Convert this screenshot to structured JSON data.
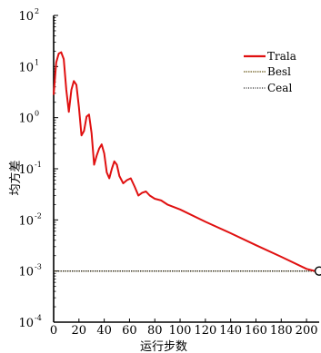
{
  "chart_data": {
    "type": "line",
    "xlabel": "运行步数",
    "ylabel": "均方差",
    "x_ticks": [
      "0",
      "20",
      "40",
      "60",
      "80",
      "100",
      "120",
      "140",
      "160",
      "180",
      "200"
    ],
    "y_ticks": [
      {
        "base": "10",
        "exp": "2"
      },
      {
        "base": "10",
        "exp": "1"
      },
      {
        "base": "10",
        "exp": "0"
      },
      {
        "base": "10",
        "exp": "-1"
      },
      {
        "base": "10",
        "exp": "-2"
      },
      {
        "base": "10",
        "exp": "-3"
      },
      {
        "base": "10",
        "exp": "-4"
      }
    ],
    "xlim": [
      0,
      210
    ],
    "ylim": [
      0.0001,
      100
    ],
    "yscale": "log",
    "grid": false,
    "legend_position": "top-right",
    "series": [
      {
        "name": "Trala",
        "color": "#e01010",
        "style": "solid",
        "x": [
          0,
          2,
          4,
          6,
          8,
          10,
          12,
          14,
          16,
          18,
          20,
          22,
          24,
          26,
          28,
          30,
          32,
          34,
          36,
          38,
          40,
          42,
          44,
          46,
          48,
          50,
          52,
          55,
          58,
          61,
          64,
          67,
          70,
          73,
          76,
          80,
          85,
          90,
          100,
          120,
          140,
          160,
          180,
          200,
          210
        ],
        "y": [
          2.8,
          12,
          18,
          19,
          14,
          3.5,
          1.3,
          3.5,
          5.2,
          4.4,
          1.6,
          0.45,
          0.55,
          1.05,
          1.15,
          0.5,
          0.12,
          0.18,
          0.25,
          0.3,
          0.2,
          0.085,
          0.065,
          0.1,
          0.14,
          0.12,
          0.072,
          0.052,
          0.06,
          0.065,
          0.045,
          0.03,
          0.034,
          0.036,
          0.03,
          0.026,
          0.024,
          0.02,
          0.016,
          0.0092,
          0.0055,
          0.0032,
          0.0019,
          0.0011,
          0.00095
        ]
      },
      {
        "name": "Besl",
        "color": "#6b5a1a",
        "style": "dotted",
        "x": [
          0,
          210
        ],
        "y": [
          0.001,
          0.001
        ]
      },
      {
        "name": "Ceal",
        "color": "#222222",
        "style": "dotted",
        "x": [
          0,
          210
        ],
        "y": [
          0.001,
          0.001
        ]
      }
    ],
    "markers": [
      {
        "x": 210,
        "y": 0.001,
        "shape": "open-circle"
      }
    ]
  }
}
